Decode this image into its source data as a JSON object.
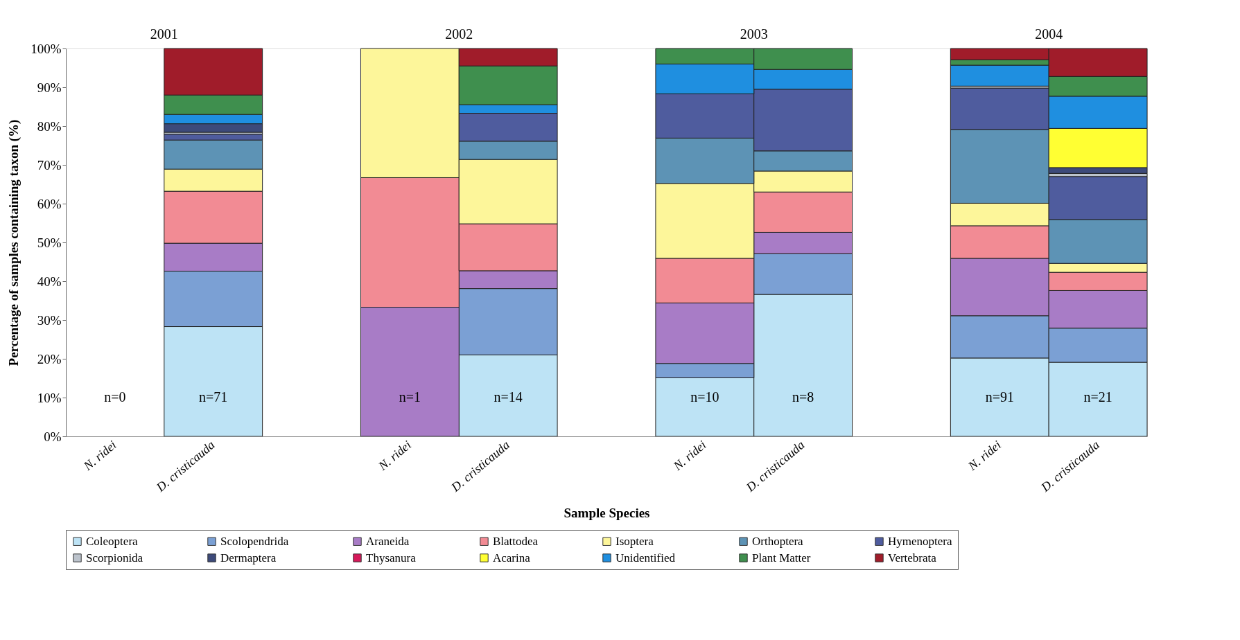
{
  "chart_data": {
    "type": "bar",
    "stacked": true,
    "ylabel": "Percentage of samples containing taxon (%)",
    "xlabel": "Sample Species",
    "categories": [
      "N. ridei",
      "D. cristicauda",
      "N. ridei",
      "D. cristicauda",
      "N. ridei",
      "D. cristicauda",
      "N. ridei",
      "D. cristicauda"
    ],
    "annotations": [
      "2001",
      "2002",
      "2003",
      "2004",
      "n=0",
      "n=71",
      "n=1",
      "n=14",
      "n=10",
      "n=8",
      "n=91",
      "n=21"
    ],
    "ylim": [
      0,
      100
    ],
    "yticks": [
      {
        "value": 0,
        "label": "0%"
      },
      {
        "value": 10,
        "label": "10%"
      },
      {
        "value": 20,
        "label": "20%"
      },
      {
        "value": 30,
        "label": "30%"
      },
      {
        "value": 40,
        "label": "40%"
      },
      {
        "value": 50,
        "label": "50%"
      },
      {
        "value": 60,
        "label": "60%"
      },
      {
        "value": 70,
        "label": "70%"
      },
      {
        "value": 80,
        "label": "80%"
      },
      {
        "value": 90,
        "label": "90%"
      },
      {
        "value": 100,
        "label": "100%"
      }
    ],
    "grid": false,
    "legend": "bottom",
    "series": [
      {
        "name": "Coleoptera",
        "color": "#bde3f5",
        "values": [
          0,
          28.3,
          0,
          21.0,
          15.1,
          36.6,
          20.2,
          19.1
        ]
      },
      {
        "name": "Scolopendrida",
        "color": "#7ba0d4",
        "values": [
          0,
          14.3,
          0,
          17.1,
          3.7,
          10.5,
          10.9,
          8.8
        ]
      },
      {
        "name": "Araneida",
        "color": "#a87cc6",
        "values": [
          0,
          7.2,
          33.3,
          4.6,
          15.6,
          5.5,
          14.8,
          9.7
        ]
      },
      {
        "name": "Blattodea",
        "color": "#f28b94",
        "values": [
          0,
          13.4,
          33.4,
          12.1,
          11.5,
          10.4,
          8.4,
          4.7
        ]
      },
      {
        "name": "Isoptera",
        "color": "#fdf69a",
        "values": [
          0,
          5.7,
          33.3,
          16.6,
          19.3,
          5.4,
          5.8,
          2.3
        ]
      },
      {
        "name": "Orthoptera",
        "color": "#5d93b5",
        "values": [
          0,
          7.5,
          0,
          4.7,
          11.7,
          5.2,
          19.0,
          11.3
        ]
      },
      {
        "name": "Hymenoptera",
        "color": "#4f5c9e",
        "values": [
          0,
          1.5,
          0,
          7.2,
          11.4,
          15.9,
          10.7,
          11.1
        ]
      },
      {
        "name": "Scorpionida",
        "color": "#bcc3cc",
        "values": [
          0,
          0.5,
          0,
          0,
          0,
          0,
          0.5,
          0.8
        ]
      },
      {
        "name": "Dermaptera",
        "color": "#3d4a7a",
        "values": [
          0,
          2.2,
          0,
          0,
          0,
          0,
          0,
          1.5
        ]
      },
      {
        "name": "Thysanura",
        "color": "#d6195a",
        "values": [
          0,
          0,
          0,
          0,
          0,
          0,
          0,
          0
        ]
      },
      {
        "name": "Acarina",
        "color": "#ffff33",
        "values": [
          0,
          0,
          0,
          0,
          0,
          0,
          0,
          10.1
        ]
      },
      {
        "name": "Unidentified",
        "color": "#1f8fe0",
        "values": [
          0,
          2.4,
          0,
          2.2,
          7.7,
          5.1,
          5.4,
          8.3
        ]
      },
      {
        "name": "Plant Matter",
        "color": "#3f8f4e",
        "values": [
          0,
          5.0,
          0,
          10.0,
          4.0,
          5.4,
          1.4,
          5.1
        ]
      },
      {
        "name": "Vertebrata",
        "color": "#a01c2a",
        "values": [
          0,
          12.0,
          0,
          4.5,
          0,
          0,
          2.9,
          7.2
        ]
      }
    ]
  }
}
